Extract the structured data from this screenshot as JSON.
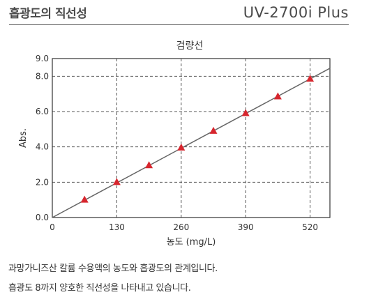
{
  "header": {
    "title": "흡광도의 직선성",
    "product": "UV-2700i Plus"
  },
  "description": [
    "과망가니즈산 칼륨 수용액의 농도와 흡광도의 관계입니다.",
    "흡광도 8까지 양호한 직선성을 나타내고 있습니다."
  ],
  "colors": {
    "marker": "#d7262e",
    "line": "#666666",
    "grid": "#555555",
    "text": "#333333"
  },
  "chart_data": {
    "type": "scatter",
    "title": "검량선",
    "xlabel": "농도 (mg/L)",
    "ylabel": "Abs.",
    "xlim": [
      0,
      560
    ],
    "ylim": [
      0,
      9.0
    ],
    "xticks": [
      0,
      130,
      260,
      390,
      520
    ],
    "xtick_labels": [
      "0",
      "130",
      "260",
      "390",
      "520"
    ],
    "yticks": [
      0,
      2.0,
      4.0,
      6.0,
      8.0,
      9.0
    ],
    "ytick_labels": [
      "0.0",
      "2.0",
      "4.0",
      "6.0",
      "8.0",
      "9.0"
    ],
    "grid": "dashed",
    "series": [
      {
        "marker": "triangle",
        "x": [
          65,
          130,
          195,
          260,
          325,
          390,
          455,
          520
        ],
        "y": [
          1.0,
          2.0,
          2.95,
          3.95,
          4.9,
          5.9,
          6.85,
          7.85
        ]
      }
    ],
    "fit_line": {
      "x": [
        0,
        560
      ],
      "y": [
        0,
        8.45
      ]
    }
  }
}
